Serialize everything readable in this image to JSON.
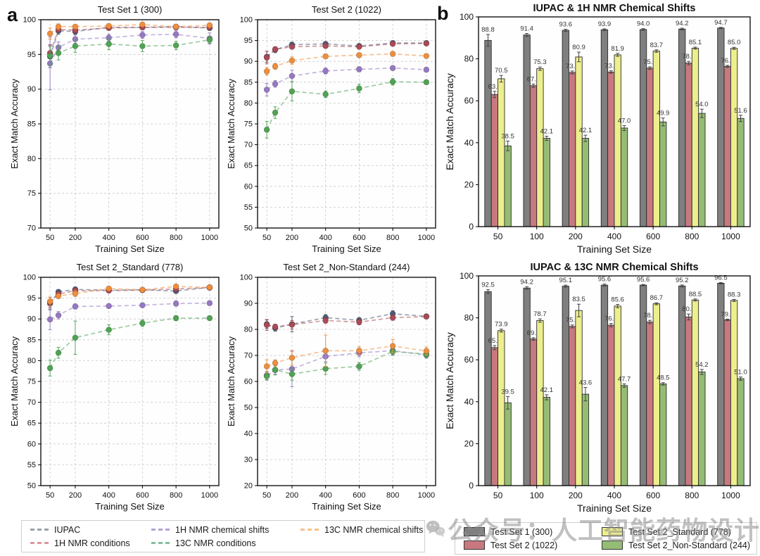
{
  "panel_labels": {
    "a": "a",
    "b": "b"
  },
  "watermark": {
    "text": "公众号：人工智能药物设计",
    "icon": "wechat-icon"
  },
  "legend_a": {
    "items": [
      {
        "label": "IUPAC",
        "color": "#9aa1ad"
      },
      {
        "label": "1H NMR chemical shifts",
        "color": "#b3a2d6"
      },
      {
        "label": "13C NMR chemical shifts",
        "color": "#f3c28f"
      },
      {
        "label": "1H NMR conditions",
        "color": "#de97a0"
      },
      {
        "label": "13C NMR conditions",
        "color": "#84bf9d"
      }
    ]
  },
  "legend_b": {
    "items": [
      {
        "label": "Test Set 1 (300)",
        "color": "#7f7f7f"
      },
      {
        "label": "Test Set 2_Standard (778)",
        "color": "#edef8d"
      },
      {
        "label": "Test Set 2 (1022)",
        "color": "#c8797f"
      },
      {
        "label": "Test Set 2_Non-Standard (244)",
        "color": "#95bc74"
      }
    ]
  },
  "chart_data": [
    {
      "type": "line",
      "title": "Test Set 1 (300)",
      "xlabel": "Training Set Size",
      "ylabel": "Exact Match Accuracy",
      "x": [
        50,
        100,
        200,
        400,
        600,
        800,
        1000
      ],
      "xticks": [
        50,
        200,
        400,
        600,
        800,
        1000
      ],
      "ylim": [
        70,
        100
      ],
      "ytick_step": 5,
      "grid": true,
      "series": [
        {
          "name": "IUPAC",
          "color": "#4e5b76",
          "values": [
            94.7,
            98.4,
            98.3,
            98.9,
            98.9,
            99.0,
            98.8
          ],
          "err": [
            1.6,
            0.5,
            0.4,
            0.3,
            0.3,
            0.3,
            0.3
          ]
        },
        {
          "name": "1H NMR conditions",
          "color": "#aa4a55",
          "values": [
            95.2,
            98.6,
            98.5,
            98.8,
            98.9,
            98.9,
            98.9
          ],
          "err": [
            1.2,
            0.4,
            0.4,
            0.3,
            0.3,
            0.3,
            0.3
          ]
        },
        {
          "name": "1H NMR chemical shifts",
          "color": "#9678c2",
          "values": [
            93.7,
            96.0,
            97.2,
            97.4,
            97.8,
            97.9,
            97.3
          ],
          "err": [
            3.8,
            0.8,
            0.6,
            0.5,
            0.5,
            0.5,
            0.8
          ]
        },
        {
          "name": "13C NMR conditions",
          "color": "#4fa353",
          "values": [
            94.8,
            95.2,
            96.2,
            96.5,
            96.2,
            96.3,
            97.1
          ],
          "err": [
            1.3,
            1.0,
            0.9,
            0.8,
            0.8,
            0.6,
            0.5
          ]
        },
        {
          "name": "13C NMR chemical shifts",
          "color": "#ef8e3c",
          "values": [
            98.0,
            99.0,
            99.0,
            99.1,
            99.3,
            99.0,
            99.2
          ],
          "err": [
            0.8,
            0.4,
            0.3,
            0.3,
            0.3,
            0.3,
            0.3
          ]
        }
      ]
    },
    {
      "type": "line",
      "title": "Test Set 2 (1022)",
      "xlabel": "Training Set Size",
      "ylabel": "Exact Match Accuracy",
      "x": [
        50,
        100,
        200,
        400,
        600,
        800,
        1000
      ],
      "xticks": [
        50,
        200,
        400,
        600,
        800,
        1000
      ],
      "ylim": [
        50,
        100
      ],
      "ytick_step": 5,
      "grid": true,
      "series": [
        {
          "name": "IUPAC",
          "color": "#4e5b76",
          "values": [
            91.1,
            92.8,
            94.0,
            94.2,
            93.7,
            94.4,
            94.4
          ],
          "err": [
            1.3,
            0.7,
            0.6,
            0.4,
            0.4,
            0.4,
            0.3
          ]
        },
        {
          "name": "1H NMR conditions",
          "color": "#aa4a55",
          "values": [
            90.9,
            92.9,
            93.5,
            93.7,
            93.5,
            94.2,
            94.3
          ],
          "err": [
            1.5,
            0.6,
            0.5,
            0.4,
            0.4,
            0.4,
            0.3
          ]
        },
        {
          "name": "1H NMR chemical shifts",
          "color": "#9678c2",
          "values": [
            83.2,
            84.6,
            86.5,
            87.7,
            88.1,
            88.4,
            88.0
          ],
          "err": [
            1.5,
            0.8,
            1.4,
            0.7,
            0.6,
            0.5,
            0.5
          ]
        },
        {
          "name": "13C NMR conditions",
          "color": "#4fa353",
          "values": [
            73.6,
            77.7,
            82.8,
            82.1,
            83.5,
            85.1,
            85.0
          ],
          "err": [
            2.0,
            1.4,
            2.3,
            0.8,
            1.0,
            0.8,
            0.5
          ]
        },
        {
          "name": "13C NMR chemical shifts",
          "color": "#ef8e3c",
          "values": [
            87.6,
            88.8,
            90.2,
            91.2,
            91.5,
            91.8,
            91.3
          ],
          "err": [
            0.9,
            0.7,
            0.9,
            0.5,
            0.5,
            0.5,
            0.4
          ]
        }
      ]
    },
    {
      "type": "line",
      "title": "Test Set 2_Standard (778)",
      "xlabel": "Training Set Size",
      "ylabel": "Exact Match Accuracy",
      "x": [
        50,
        100,
        200,
        400,
        600,
        800,
        1000
      ],
      "xticks": [
        50,
        200,
        400,
        600,
        800,
        1000
      ],
      "ylim": [
        50,
        100
      ],
      "ytick_step": 5,
      "grid": true,
      "series": [
        {
          "name": "IUPAC",
          "color": "#4e5b76",
          "values": [
            93.7,
            96.5,
            97.1,
            96.9,
            97.0,
            96.7,
            97.6
          ],
          "err": [
            1.5,
            0.5,
            0.5,
            0.4,
            0.4,
            0.4,
            0.3
          ]
        },
        {
          "name": "1H NMR conditions",
          "color": "#aa4a55",
          "values": [
            94.0,
            96.0,
            96.8,
            96.8,
            96.9,
            97.2,
            97.5
          ],
          "err": [
            1.2,
            0.5,
            0.5,
            0.4,
            0.4,
            0.4,
            0.3
          ]
        },
        {
          "name": "1H NMR chemical shifts",
          "color": "#9678c2",
          "values": [
            89.9,
            90.9,
            93.0,
            93.1,
            93.3,
            93.7,
            93.8
          ],
          "err": [
            2.5,
            0.9,
            0.6,
            0.5,
            0.5,
            0.6,
            0.5
          ]
        },
        {
          "name": "13C NMR conditions",
          "color": "#4fa353",
          "values": [
            78.2,
            81.9,
            85.5,
            87.4,
            89.0,
            90.2,
            90.2
          ],
          "err": [
            1.9,
            1.3,
            4.0,
            1.2,
            0.8,
            0.6,
            0.5
          ]
        },
        {
          "name": "13C NMR chemical shifts",
          "color": "#ef8e3c",
          "values": [
            94.2,
            95.5,
            96.1,
            97.3,
            97.0,
            97.8,
            97.6
          ],
          "err": [
            1.0,
            0.6,
            0.7,
            0.4,
            0.4,
            0.3,
            0.3
          ]
        }
      ]
    },
    {
      "type": "line",
      "title": "Test Set 2_Non-Standard (244)",
      "xlabel": "Training Set Size",
      "ylabel": "Exact Match Accuracy",
      "x": [
        50,
        100,
        200,
        400,
        600,
        800,
        1000
      ],
      "xticks": [
        50,
        200,
        400,
        600,
        800,
        1000
      ],
      "ylim": [
        20,
        100
      ],
      "ytick_step": 10,
      "grid": true,
      "series": [
        {
          "name": "IUPAC",
          "color": "#4e5b76",
          "values": [
            82.0,
            80.5,
            82.0,
            84.5,
            83.5,
            86.0,
            85.0
          ],
          "err": [
            1.6,
            1.2,
            2.9,
            1.2,
            1.0,
            1.2,
            0.8
          ]
        },
        {
          "name": "1H NMR conditions",
          "color": "#aa4a55",
          "values": [
            81.7,
            81.0,
            81.8,
            83.4,
            82.8,
            84.5,
            84.9
          ],
          "err": [
            2.1,
            1.0,
            1.6,
            1.0,
            1.0,
            1.0,
            0.8
          ]
        },
        {
          "name": "1H NMR chemical shifts",
          "color": "#9678c2",
          "values": [
            62.3,
            64.4,
            64.8,
            69.6,
            71.0,
            71.8,
            70.2
          ],
          "err": [
            1.6,
            1.6,
            6.8,
            2.0,
            1.5,
            1.5,
            1.2
          ]
        },
        {
          "name": "13C NMR conditions",
          "color": "#4fa353",
          "values": [
            62.0,
            64.5,
            62.8,
            64.9,
            65.8,
            71.5,
            70.5
          ],
          "err": [
            1.5,
            2.0,
            2.3,
            2.2,
            1.5,
            1.5,
            1.5
          ]
        },
        {
          "name": "13C NMR chemical shifts",
          "color": "#ef8e3c",
          "values": [
            65.8,
            67.1,
            69.1,
            71.8,
            71.8,
            73.6,
            71.7
          ],
          "err": [
            2.5,
            1.2,
            2.8,
            6.0,
            1.5,
            2.5,
            1.5
          ]
        }
      ]
    },
    {
      "type": "bar",
      "title": "IUPAC & 1H NMR Chemical Shifts",
      "xlabel": "Training Set Size",
      "ylabel": "Exact Match Accuracy",
      "categories": [
        50,
        100,
        200,
        400,
        600,
        800,
        1000
      ],
      "ylim": [
        0,
        100
      ],
      "ytick_step": 20,
      "grid": false,
      "series": [
        {
          "name": "Test Set 1 (300)",
          "color": "#7f7f7f",
          "values": [
            88.8,
            91.4,
            93.6,
            93.9,
            94.0,
            94.2,
            94.7
          ],
          "err": [
            2.8,
            0.7,
            0.5,
            0.4,
            0.4,
            0.4,
            0.3
          ]
        },
        {
          "name": "Test Set 2 (1022)",
          "color": "#c8797f",
          "values": [
            63.0,
            67.2,
            73.5,
            73.7,
            75.6,
            78.0,
            76.4
          ],
          "err": [
            1.5,
            0.8,
            0.7,
            0.6,
            0.6,
            0.8,
            0.5
          ]
        },
        {
          "name": "Test Set 2_Standard (778)",
          "color": "#edef8d",
          "values": [
            70.5,
            75.3,
            80.9,
            81.9,
            83.7,
            85.1,
            85.0
          ],
          "err": [
            1.6,
            0.8,
            2.3,
            0.7,
            0.6,
            0.5,
            0.5
          ]
        },
        {
          "name": "Test Set 2_Non-Standard (244)",
          "color": "#95bc74",
          "values": [
            38.5,
            42.1,
            42.1,
            47.0,
            49.9,
            54.0,
            51.6
          ],
          "err": [
            2.3,
            1.0,
            1.5,
            1.2,
            1.9,
            2.0,
            1.5
          ]
        }
      ]
    },
    {
      "type": "bar",
      "title": "IUPAC & 13C NMR Chemical Shifts",
      "xlabel": "Training Set Size",
      "ylabel": "Exact Match Accuracy",
      "categories": [
        50,
        100,
        200,
        400,
        600,
        800,
        1000
      ],
      "ylim": [
        0,
        100
      ],
      "ytick_step": 20,
      "grid": false,
      "series": [
        {
          "name": "Test Set 1 (300)",
          "color": "#7f7f7f",
          "values": [
            92.5,
            94.2,
            95.1,
            95.6,
            95.6,
            95.2,
            96.5
          ],
          "err": [
            0.9,
            0.6,
            0.5,
            0.5,
            0.3,
            0.5,
            0.3
          ]
        },
        {
          "name": "Test Set 2 (1022)",
          "color": "#c8797f",
          "values": [
            65.8,
            69.9,
            75.9,
            76.5,
            78.0,
            80.4,
            79.0
          ],
          "err": [
            1.0,
            0.6,
            0.7,
            0.8,
            0.8,
            1.4,
            0.4
          ]
        },
        {
          "name": "Test Set 2_Standard (778)",
          "color": "#edef8d",
          "values": [
            73.9,
            78.7,
            83.5,
            85.6,
            86.7,
            88.5,
            88.3
          ],
          "err": [
            0.7,
            0.8,
            3.0,
            0.8,
            0.5,
            0.5,
            0.5
          ]
        },
        {
          "name": "Test Set 2_Non-Standard (244)",
          "color": "#95bc74",
          "values": [
            39.5,
            42.1,
            43.6,
            47.7,
            48.5,
            54.2,
            51.0
          ],
          "err": [
            3.0,
            1.2,
            3.2,
            0.8,
            0.6,
            1.2,
            0.8
          ]
        }
      ]
    }
  ]
}
